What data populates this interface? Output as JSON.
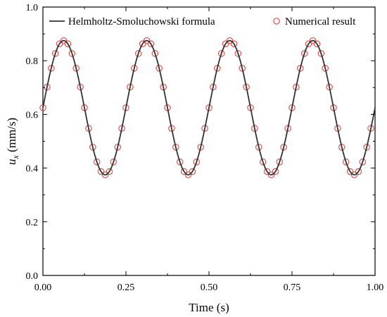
{
  "chart_data": {
    "type": "line",
    "xlabel": "Time (s)",
    "ylabel_main": "u",
    "ylabel_sub": "x",
    "ylabel_unit": " (mm/s)",
    "xlim": [
      0,
      1
    ],
    "ylim": [
      0,
      1
    ],
    "xticks": [
      0,
      0.25,
      0.5,
      0.75,
      1
    ],
    "xtick_labels": [
      "0.00",
      "0.25",
      "0.50",
      "0.75",
      "1.00"
    ],
    "yticks": [
      0,
      0.2,
      0.4,
      0.6,
      0.8,
      1
    ],
    "ytick_labels": [
      "0.0",
      "0.2",
      "0.4",
      "0.6",
      "0.8",
      "1.0"
    ],
    "grid": false,
    "legend_position": "top",
    "series": [
      {
        "name": "Helmholtz-Smoluchowski formula",
        "kind": "line",
        "color": "#333333",
        "model": {
          "mean": 0.625,
          "amplitude": 0.25,
          "frequency_hz": 4,
          "phase_rad": 0
        }
      },
      {
        "name": "Numerical result",
        "kind": "scatter",
        "marker": "open-circle",
        "color": "#d9534f",
        "x": [
          0.0,
          0.0125,
          0.025,
          0.0375,
          0.05,
          0.0625,
          0.075,
          0.0875,
          0.1,
          0.1125,
          0.125,
          0.1375,
          0.15,
          0.1625,
          0.175,
          0.1875,
          0.2,
          0.2125,
          0.225,
          0.2375,
          0.25,
          0.2625,
          0.275,
          0.2875,
          0.3,
          0.3125,
          0.325,
          0.3375,
          0.35,
          0.3625,
          0.375,
          0.3875,
          0.4,
          0.4125,
          0.425,
          0.4375,
          0.45,
          0.4625,
          0.475,
          0.4875,
          0.5,
          0.5125,
          0.525,
          0.5375,
          0.55,
          0.5625,
          0.575,
          0.5875,
          0.6,
          0.6125,
          0.625,
          0.6375,
          0.65,
          0.6625,
          0.675,
          0.6875,
          0.7,
          0.7125,
          0.725,
          0.7375,
          0.75,
          0.7625,
          0.775,
          0.7875,
          0.8,
          0.8125,
          0.825,
          0.8375,
          0.85,
          0.8625,
          0.875,
          0.8875,
          0.9,
          0.9125,
          0.925,
          0.9375,
          0.95,
          0.9625,
          0.975,
          0.9875
        ],
        "y": [
          0.625,
          0.702,
          0.772,
          0.827,
          0.863,
          0.875,
          0.863,
          0.827,
          0.772,
          0.702,
          0.625,
          0.548,
          0.478,
          0.423,
          0.387,
          0.375,
          0.387,
          0.423,
          0.478,
          0.548,
          0.625,
          0.702,
          0.772,
          0.827,
          0.863,
          0.875,
          0.863,
          0.827,
          0.772,
          0.702,
          0.625,
          0.548,
          0.478,
          0.423,
          0.387,
          0.375,
          0.387,
          0.423,
          0.478,
          0.548,
          0.625,
          0.702,
          0.772,
          0.827,
          0.863,
          0.875,
          0.863,
          0.827,
          0.772,
          0.702,
          0.625,
          0.548,
          0.478,
          0.423,
          0.387,
          0.375,
          0.387,
          0.423,
          0.478,
          0.548,
          0.625,
          0.702,
          0.772,
          0.827,
          0.863,
          0.875,
          0.863,
          0.827,
          0.772,
          0.702,
          0.625,
          0.548,
          0.478,
          0.423,
          0.387,
          0.375,
          0.387,
          0.423,
          0.478,
          0.548
        ]
      }
    ]
  }
}
